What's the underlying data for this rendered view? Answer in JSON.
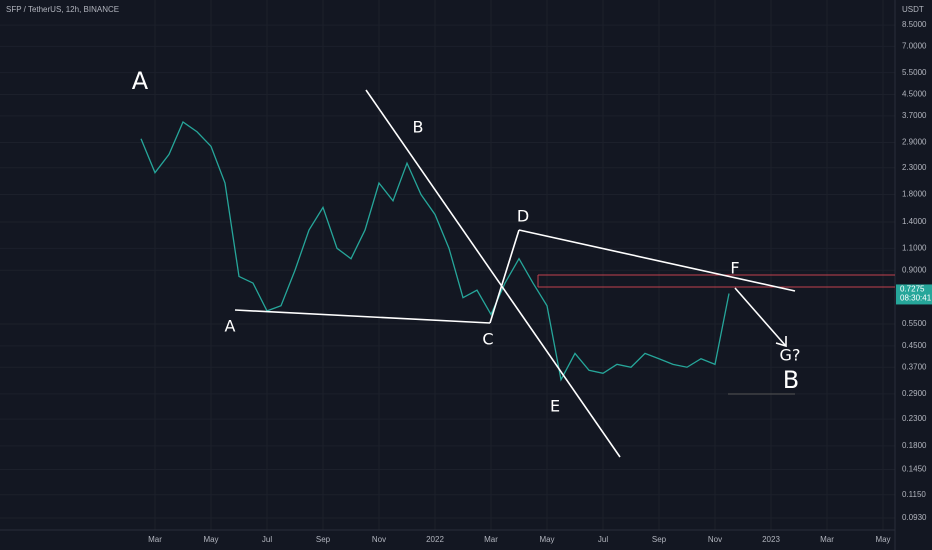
{
  "chart_data": {
    "type": "line",
    "title": "SFP / TetherUS, 12h, BINANCE",
    "y_unit": "USDT",
    "log_scale": true,
    "grid": true,
    "categories": [
      null,
      "Mar",
      null,
      null,
      null,
      "May",
      null,
      null,
      null,
      "Jul",
      null,
      null,
      null,
      "Sep",
      null,
      null,
      null,
      "Nov",
      null,
      null,
      null,
      "2022",
      null,
      null,
      null,
      "Mar",
      null,
      null,
      null,
      "May",
      null,
      null,
      null,
      "Jul",
      null,
      null,
      null,
      "Sep",
      null,
      null,
      null,
      "Nov",
      null,
      null,
      null,
      "2023",
      null,
      null,
      null,
      "Mar",
      null,
      null,
      null,
      "May"
    ],
    "series": [
      {
        "color": "#26a69a",
        "values": [
          3.0,
          2.2,
          2.6,
          3.5,
          3.2,
          2.8,
          2.0,
          0.85,
          0.8,
          0.62,
          0.65,
          0.9,
          1.3,
          1.6,
          1.1,
          1.0,
          1.3,
          2.0,
          1.7,
          2.4,
          1.8,
          1.5,
          1.1,
          0.7,
          0.75,
          0.6,
          0.8,
          1.0,
          0.8,
          0.65,
          0.33,
          0.42,
          0.36,
          0.35,
          0.38,
          0.37,
          0.42,
          0.4,
          0.38,
          0.37,
          0.4,
          0.38,
          0.7275,
          null,
          null,
          null,
          null,
          null,
          null,
          null,
          null,
          null,
          null,
          null
        ]
      }
    ],
    "ylim": [
      0.0833,
      10.7
    ],
    "yticks": [
      {
        "value": 8.5,
        "label": "8.5000"
      },
      {
        "value": 7,
        "label": "7.0000"
      },
      {
        "value": 5.5,
        "label": "5.5000"
      },
      {
        "value": 4.5,
        "label": "4.5000"
      },
      {
        "value": 3.7,
        "label": "3.7000"
      },
      {
        "value": 2.9,
        "label": "2.9000"
      },
      {
        "value": 2.3,
        "label": "2.3000"
      },
      {
        "value": 1.8,
        "label": "1.8000"
      },
      {
        "value": 1.4,
        "label": "1.4000"
      },
      {
        "value": 1.1,
        "label": "1.1000"
      },
      {
        "value": 0.9,
        "label": "0.9000"
      },
      {
        "value": 0.55,
        "label": "0.5500"
      },
      {
        "value": 0.45,
        "label": "0.4500"
      },
      {
        "value": 0.37,
        "label": "0.3700"
      },
      {
        "value": 0.29,
        "label": "0.2900"
      },
      {
        "value": 0.23,
        "label": "0.2300"
      },
      {
        "value": 0.18,
        "label": "0.1800"
      },
      {
        "value": 0.145,
        "label": "0.1450"
      },
      {
        "value": 0.115,
        "label": "0.1150"
      },
      {
        "value": 0.093,
        "label": "0.0930"
      }
    ],
    "last_price": 0.7275,
    "countdown": "08:30:41",
    "annotations": [
      "A",
      "B",
      "A",
      "B",
      "C",
      "D",
      "E",
      "F",
      "G?"
    ]
  }
}
